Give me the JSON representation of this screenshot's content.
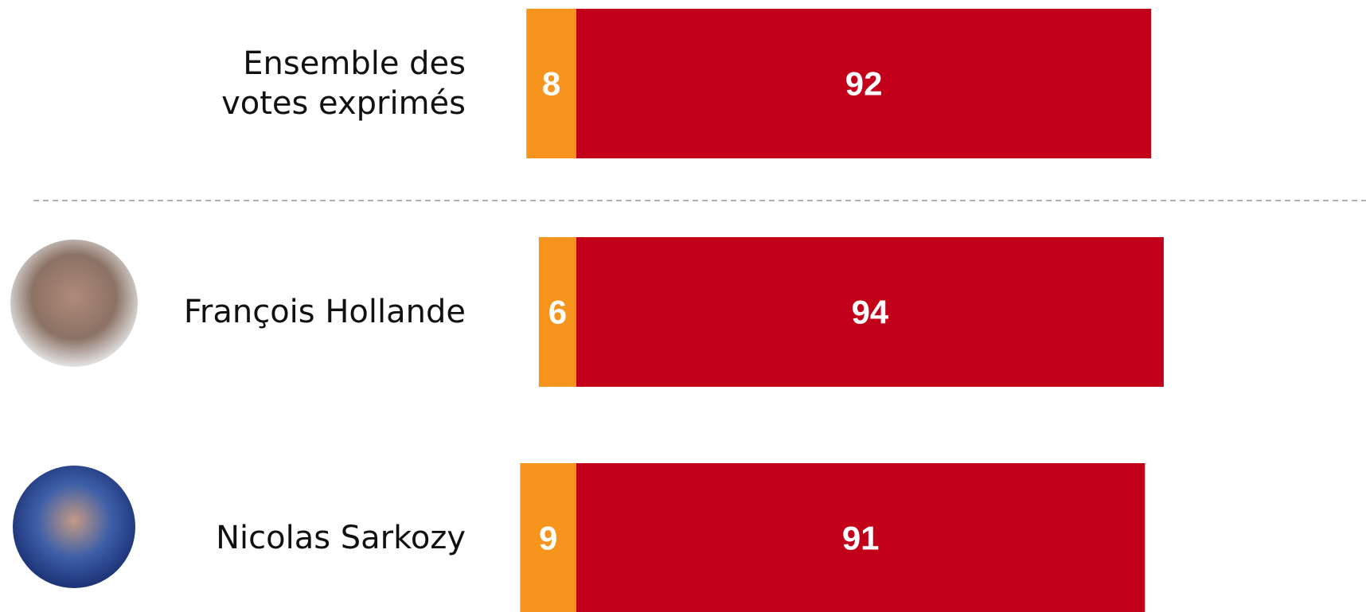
{
  "chart_data": {
    "type": "bar",
    "orientation": "horizontal",
    "stacked": true,
    "diverging": true,
    "categories": [
      "Ensemble des\nvotes exprimés",
      "François Hollande",
      "Nicolas Sarkozy"
    ],
    "series": [
      {
        "color": "#f7941d",
        "values": [
          8,
          6,
          9
        ]
      },
      {
        "color": "#c30019",
        "values": [
          92,
          94,
          91
        ]
      }
    ]
  }
}
